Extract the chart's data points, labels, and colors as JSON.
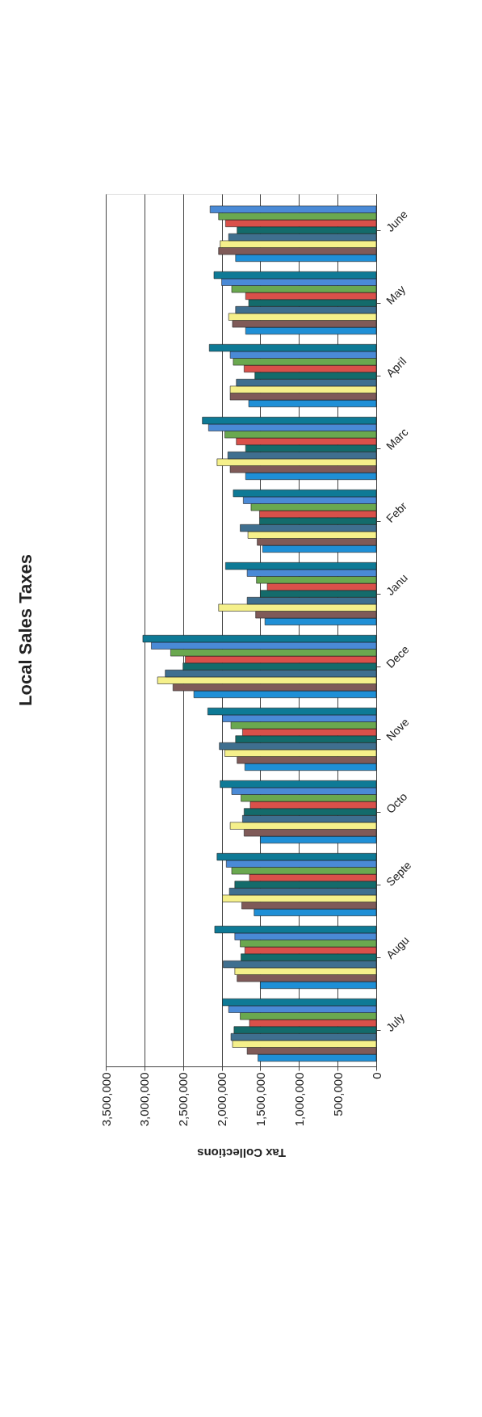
{
  "chart_data": {
    "type": "bar",
    "orientation": "horizontal",
    "title": "Local Sales Taxes",
    "xlabel": "Tax Collections",
    "categories": [
      "June",
      "May",
      "April",
      "Marc",
      "Febr",
      "Janu",
      "Dece",
      "Nove",
      "Octo",
      "Septe",
      "Augu",
      "July"
    ],
    "series": [
      {
        "color": "#1f8fd6",
        "values": [
          1820000,
          1690000,
          1650000,
          1690000,
          1470000,
          1440000,
          2360000,
          1700000,
          1500000,
          1580000,
          1500000,
          1530000
        ]
      },
      {
        "color": "#7f5a58",
        "values": [
          2040000,
          1860000,
          1890000,
          1890000,
          1540000,
          1560000,
          2630000,
          1800000,
          1710000,
          1740000,
          1800000,
          1670000
        ]
      },
      {
        "color": "#f5f08a",
        "values": [
          2020000,
          1910000,
          1890000,
          2060000,
          1660000,
          2040000,
          2830000,
          1960000,
          1890000,
          1990000,
          1830000,
          1860000
        ]
      },
      {
        "color": "#3f6f8f",
        "values": [
          1910000,
          1820000,
          1810000,
          1920000,
          1760000,
          1670000,
          2730000,
          2030000,
          1730000,
          1900000,
          1980000,
          1880000
        ]
      },
      {
        "color": "#146b6b",
        "values": [
          1800000,
          1650000,
          1570000,
          1690000,
          1510000,
          1500000,
          2500000,
          1820000,
          1710000,
          1830000,
          1750000,
          1840000
        ]
      },
      {
        "color": "#d9504a",
        "values": [
          1950000,
          1690000,
          1710000,
          1810000,
          1510000,
          1410000,
          2470000,
          1730000,
          1630000,
          1640000,
          1700000,
          1640000
        ]
      },
      {
        "color": "#6aa84f",
        "values": [
          2040000,
          1870000,
          1850000,
          1960000,
          1620000,
          1550000,
          2660000,
          1880000,
          1750000,
          1870000,
          1760000,
          1760000
        ]
      },
      {
        "color": "#4a8ad6",
        "values": [
          2150000,
          2000000,
          1890000,
          2170000,
          1720000,
          1670000,
          2910000,
          1990000,
          1870000,
          1940000,
          1830000,
          1910000
        ]
      },
      {
        "color": "#0e7a96",
        "values": [
          null,
          2100000,
          2160000,
          2250000,
          1850000,
          1950000,
          3020000,
          2180000,
          2020000,
          2060000,
          2090000,
          1990000
        ]
      }
    ],
    "xlim": [
      3500000,
      0
    ],
    "xticks": [
      0,
      {
        "value": 500000,
        "label": "500,000"
      },
      {
        "value": 1000000,
        "label": "1,000,000"
      },
      {
        "value": 1500000,
        "label": "1,500,000"
      },
      {
        "value": 2000000,
        "label": "2,000,000"
      },
      {
        "value": 2500000,
        "label": "2,500,000"
      },
      {
        "value": 3000000,
        "label": "3,000,000"
      },
      {
        "value": 3500000,
        "label": "3,500,000"
      }
    ],
    "grid": "x",
    "legend": false
  }
}
